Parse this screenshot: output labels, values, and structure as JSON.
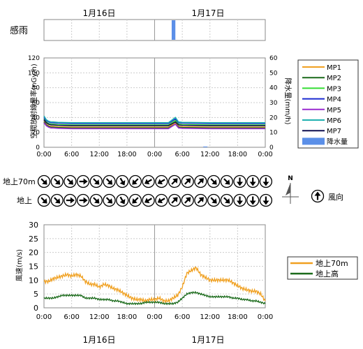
{
  "date_labels": [
    "1月16日",
    "1月17日"
  ],
  "rain_sense_label": "感雨",
  "wind_row_labels": [
    "地上70m",
    "地上"
  ],
  "north_label": "N",
  "wind_dir_legend": "風向",
  "x_ticks": [
    "0:00",
    "6:00",
    "12:00",
    "18:00",
    "0:00",
    "6:00",
    "12:00",
    "18:00",
    "0:00"
  ],
  "colors": {
    "MP1": "#f0a020",
    "MP2": "#1a6a1a",
    "MP3": "#33dd33",
    "MP4": "#1a2ad0",
    "MP5": "#9a2ad0",
    "MP6": "#20b0b0",
    "MP7": "#101050",
    "rain": "#5b8fe8",
    "wind70": "#f0a020",
    "wind_ground": "#1a6a1a"
  },
  "chart_data": [
    {
      "type": "bar",
      "title": "感雨",
      "x_unit": "hours from 1月16日 0:00",
      "xlim": [
        0,
        48
      ],
      "rain_sense_periods": [
        [
          27.7,
          28.5
        ]
      ]
    },
    {
      "type": "line",
      "ylabel": "空間放射線量率(nGy/h)",
      "ylabel2": "降水量(mm/h)",
      "ylim": [
        0,
        120
      ],
      "y_ticks": [
        0,
        20,
        40,
        60,
        80,
        100,
        120
      ],
      "ylim2": [
        0,
        60
      ],
      "y2_ticks": [
        0,
        10,
        20,
        30,
        40,
        50,
        60
      ],
      "xlim": [
        0,
        48
      ],
      "x_hours": [
        0,
        0.5,
        1,
        1.5,
        2,
        3,
        6,
        12,
        18,
        24,
        27,
        28.5,
        29.2,
        30,
        36,
        42,
        48
      ],
      "series": [
        {
          "name": "MP1",
          "values": [
            35,
            31,
            29,
            28,
            28,
            27.5,
            27,
            27,
            27,
            27,
            27,
            33,
            28,
            27.5,
            27,
            27,
            27
          ]
        },
        {
          "name": "MP2",
          "values": [
            34,
            30,
            28,
            27,
            27,
            26.5,
            26,
            26,
            26,
            26,
            26,
            31,
            27,
            26.5,
            26,
            26,
            26
          ]
        },
        {
          "name": "MP3",
          "values": [
            38,
            34,
            32,
            31,
            31,
            30.5,
            30,
            30,
            30,
            30,
            30,
            36,
            31,
            30.5,
            30,
            30,
            30
          ]
        },
        {
          "name": "MP4",
          "values": [
            40,
            36,
            34,
            33,
            33,
            32.5,
            32,
            32,
            32,
            32,
            32,
            38,
            33,
            32.5,
            32,
            32,
            32
          ]
        },
        {
          "name": "MP5",
          "values": [
            33,
            29,
            27,
            26,
            26,
            25.5,
            25,
            25,
            25,
            25,
            25,
            31,
            26,
            25.5,
            25,
            25,
            25
          ]
        },
        {
          "name": "MP6",
          "values": [
            42,
            37,
            35,
            34,
            34,
            33.5,
            33,
            33,
            33,
            33,
            33,
            40,
            34,
            33.5,
            33,
            33,
            33
          ]
        },
        {
          "name": "MP7",
          "values": [
            37,
            33,
            31,
            30,
            30,
            29.5,
            29,
            29,
            29,
            29,
            29,
            34,
            30,
            29.5,
            29,
            29,
            29
          ]
        }
      ],
      "rain_series": {
        "name": "降水量",
        "x_hours": [
          35
        ],
        "values": [
          0.5
        ]
      },
      "grid": true,
      "legend_placement": "right"
    },
    {
      "type": "line",
      "ylabel": "風速(m/s)",
      "ylim": [
        0,
        30
      ],
      "y_ticks": [
        0,
        5,
        10,
        15,
        20,
        25,
        30
      ],
      "xlim": [
        0,
        48
      ],
      "x_hours": [
        0,
        1,
        2,
        3,
        4,
        5,
        6,
        7,
        8,
        9,
        10,
        11,
        12,
        13,
        14,
        15,
        16,
        17,
        18,
        19,
        20,
        21,
        22,
        23,
        24,
        25,
        26,
        27,
        28,
        29,
        30,
        31,
        32,
        33,
        34,
        35,
        36,
        37,
        38,
        39,
        40,
        41,
        42,
        43,
        44,
        45,
        46,
        47,
        48
      ],
      "series": [
        {
          "name": "地上70m",
          "values": [
            9.5,
            9.5,
            10.5,
            11,
            11.5,
            12,
            11.5,
            12,
            11.5,
            9.5,
            8.5,
            8.5,
            7.5,
            8.5,
            8,
            7,
            6.5,
            5.5,
            4.5,
            3.5,
            3,
            3,
            2.5,
            3,
            3,
            3.5,
            2.5,
            2.5,
            3.5,
            4.5,
            7.5,
            12.5,
            13.5,
            14.5,
            12,
            11,
            10,
            10,
            10,
            10,
            10,
            9,
            8,
            7,
            6.5,
            6,
            6,
            5,
            2.5
          ]
        },
        {
          "name": "地上高",
          "values": [
            3.5,
            3.5,
            3.5,
            4,
            4.5,
            4.5,
            4.5,
            4.5,
            4.5,
            3.5,
            3.5,
            3.5,
            3,
            3,
            3,
            2.5,
            2.5,
            2,
            1.5,
            1.5,
            1.5,
            1.5,
            2,
            2,
            2,
            2,
            1.5,
            1.5,
            1.5,
            2,
            3.5,
            5,
            5.5,
            5.5,
            5,
            4.5,
            4,
            4,
            4,
            4,
            4,
            3.5,
            3.5,
            3,
            3,
            2.5,
            2.5,
            2,
            1.5
          ]
        }
      ],
      "grid": true,
      "legend_placement": "right"
    }
  ],
  "wind_directions": {
    "angles_note": "arrow pointing direction in degrees (0 = up/north, clockwise)",
    "row_70m": [
      135,
      135,
      135,
      90,
      135,
      135,
      150,
      225,
      240,
      240,
      45,
      45,
      45,
      135,
      135,
      180,
      180,
      180
    ],
    "row_ground": [
      135,
      135,
      90,
      90,
      135,
      135,
      150,
      225,
      240,
      240,
      45,
      45,
      45,
      135,
      135,
      180,
      180,
      180
    ],
    "legend_angle": 0
  }
}
